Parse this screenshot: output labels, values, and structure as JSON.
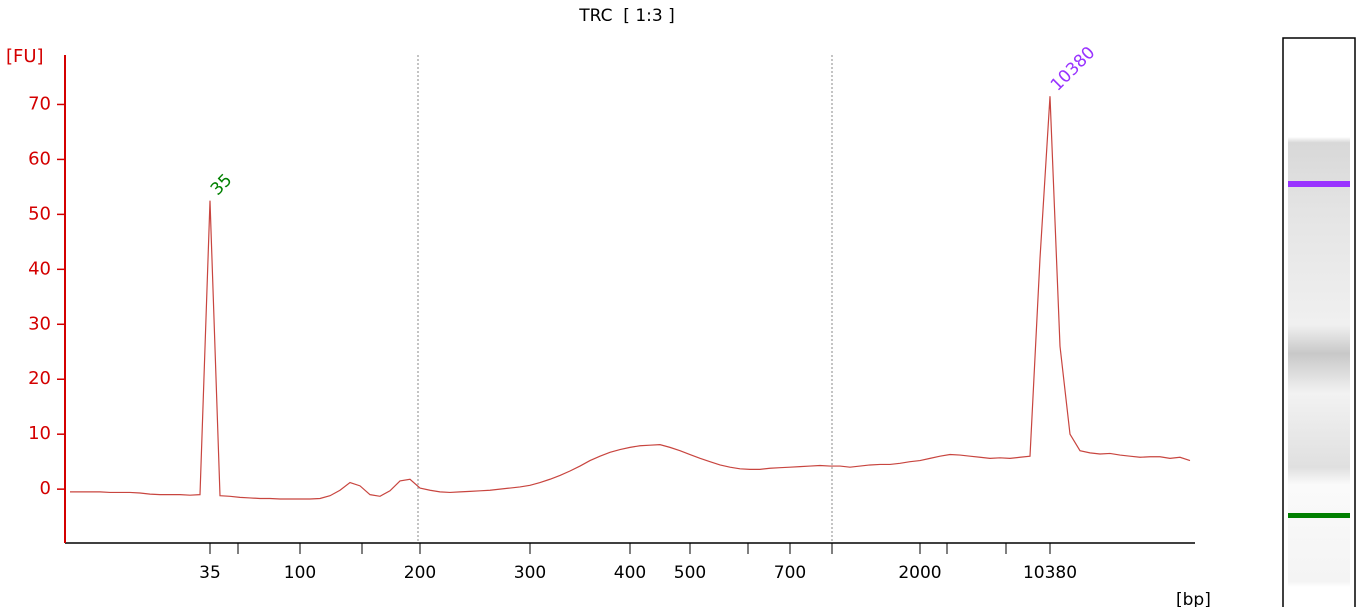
{
  "chart_data": {
    "type": "line",
    "title": "TRC  [ 1:3 ]",
    "y_label": "[FU]",
    "x_label": "[bp]",
    "color": "#c8453f",
    "categories": [
      null,
      null,
      null,
      null,
      null,
      null,
      null,
      null,
      null,
      null,
      null,
      null,
      null,
      null,
      "35",
      null,
      null,
      null,
      null,
      null,
      null,
      null,
      null,
      "100",
      null,
      null,
      null,
      null,
      null,
      null,
      null,
      null,
      null,
      null,
      null,
      "200",
      null,
      null,
      null,
      null,
      null,
      null,
      null,
      null,
      null,
      null,
      "300",
      null,
      null,
      null,
      null,
      null,
      null,
      null,
      null,
      null,
      "400",
      null,
      null,
      null,
      null,
      null,
      "500",
      null,
      null,
      null,
      null,
      null,
      null,
      null,
      null,
      null,
      "700",
      null,
      null,
      null,
      null,
      null,
      null,
      null,
      null,
      null,
      null,
      null,
      null,
      "2000",
      null,
      null,
      null,
      null,
      null,
      null,
      null,
      null,
      null,
      null,
      null,
      null,
      "10380",
      null,
      null,
      null,
      null,
      null,
      null,
      null,
      null,
      null,
      null,
      null,
      null,
      null,
      null
    ],
    "values": [
      -0.5,
      -0.5,
      -0.5,
      -0.5,
      -0.6,
      -0.6,
      -0.6,
      -0.7,
      -0.9,
      -1,
      -1,
      -1,
      -1.1,
      -1,
      52.5,
      -1.2,
      -1.3,
      -1.5,
      -1.6,
      -1.7,
      -1.7,
      -1.8,
      -1.8,
      -1.8,
      -1.8,
      -1.7,
      -1.2,
      -0.2,
      1.2,
      0.6,
      -1,
      -1.3,
      -0.3,
      1.5,
      1.8,
      0.2,
      -0.2,
      -0.5,
      -0.6,
      -0.5,
      -0.4,
      -0.3,
      -0.2,
      0,
      0.2,
      0.4,
      0.7,
      1.2,
      1.8,
      2.5,
      3.3,
      4.2,
      5.2,
      6,
      6.7,
      7.2,
      7.6,
      7.9,
      8,
      8.1,
      7.6,
      7,
      6.3,
      5.6,
      5,
      4.4,
      4,
      3.7,
      3.6,
      3.6,
      3.8,
      3.9,
      4,
      4.1,
      4.2,
      4.3,
      4.2,
      4.2,
      4,
      4.2,
      4.4,
      4.5,
      4.5,
      4.7,
      5,
      5.2,
      5.6,
      6,
      6.3,
      6.2,
      6,
      5.8,
      5.6,
      5.7,
      5.6,
      5.8,
      6,
      42,
      71.5,
      26,
      10,
      7,
      6.6,
      6.4,
      6.5,
      6.2,
      6,
      5.8,
      5.9,
      5.9,
      5.6,
      5.8,
      5.2
    ],
    "ylim": [
      -9.8,
      79
    ],
    "yticks": [
      0,
      10,
      20,
      30,
      40,
      50,
      60,
      70
    ],
    "annotations": [
      {
        "text": "35",
        "color": "#008000"
      },
      {
        "text": "10380",
        "color": "#9933ff"
      }
    ]
  }
}
